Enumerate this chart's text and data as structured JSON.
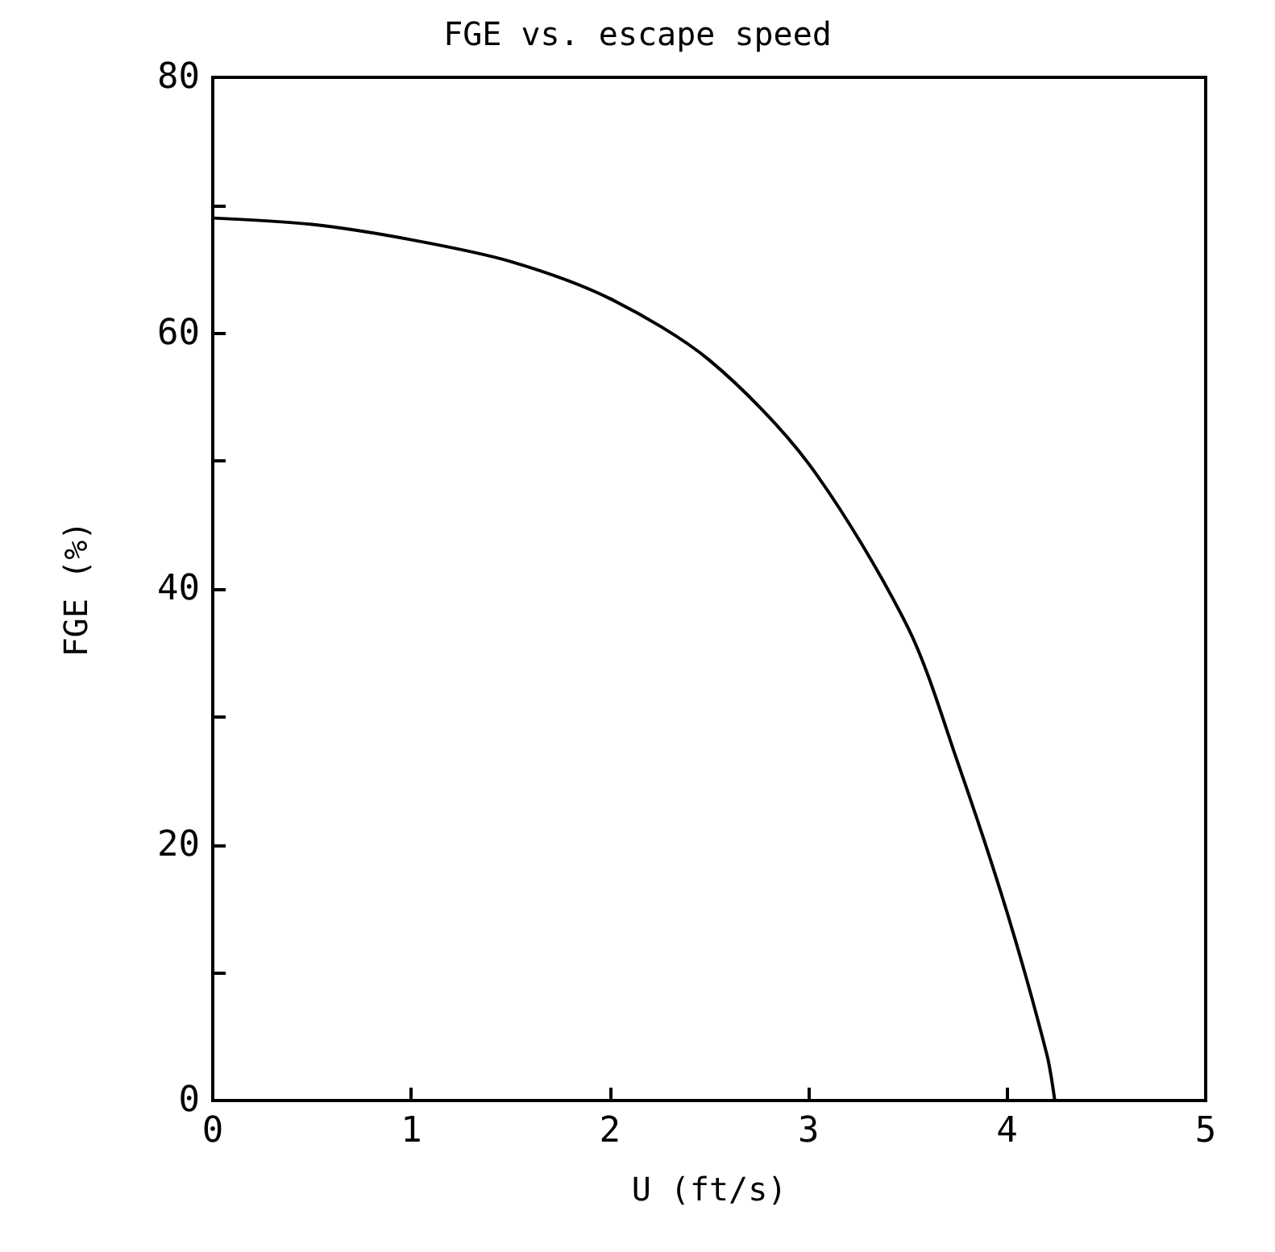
{
  "chart_data": {
    "type": "line",
    "title": "FGE vs. escape speed",
    "xlabel": "U (ft/s)",
    "ylabel": "FGE (%)",
    "xlim": [
      0,
      5
    ],
    "xticks": [
      0,
      1,
      2,
      3,
      4,
      5
    ],
    "ylim": [
      0,
      80
    ],
    "yticks": [
      0,
      {
        "value": 10,
        "label": null
      },
      20,
      {
        "value": 30,
        "label": null
      },
      40,
      {
        "value": 50,
        "label": null
      },
      60,
      {
        "value": 70,
        "label": null
      },
      80
    ],
    "marker": "none",
    "line_style": "solid",
    "series": [
      {
        "color": "#000000",
        "x": [
          0,
          0.5,
          1,
          1.5,
          2,
          2.5,
          3,
          3.5,
          3.75,
          4,
          4.2,
          4.24
        ],
        "values": [
          69,
          68.5,
          67.3,
          65.6,
          62.7,
          57.9,
          49.8,
          37,
          26.5,
          14.7,
          3.6,
          0
        ]
      }
    ]
  }
}
